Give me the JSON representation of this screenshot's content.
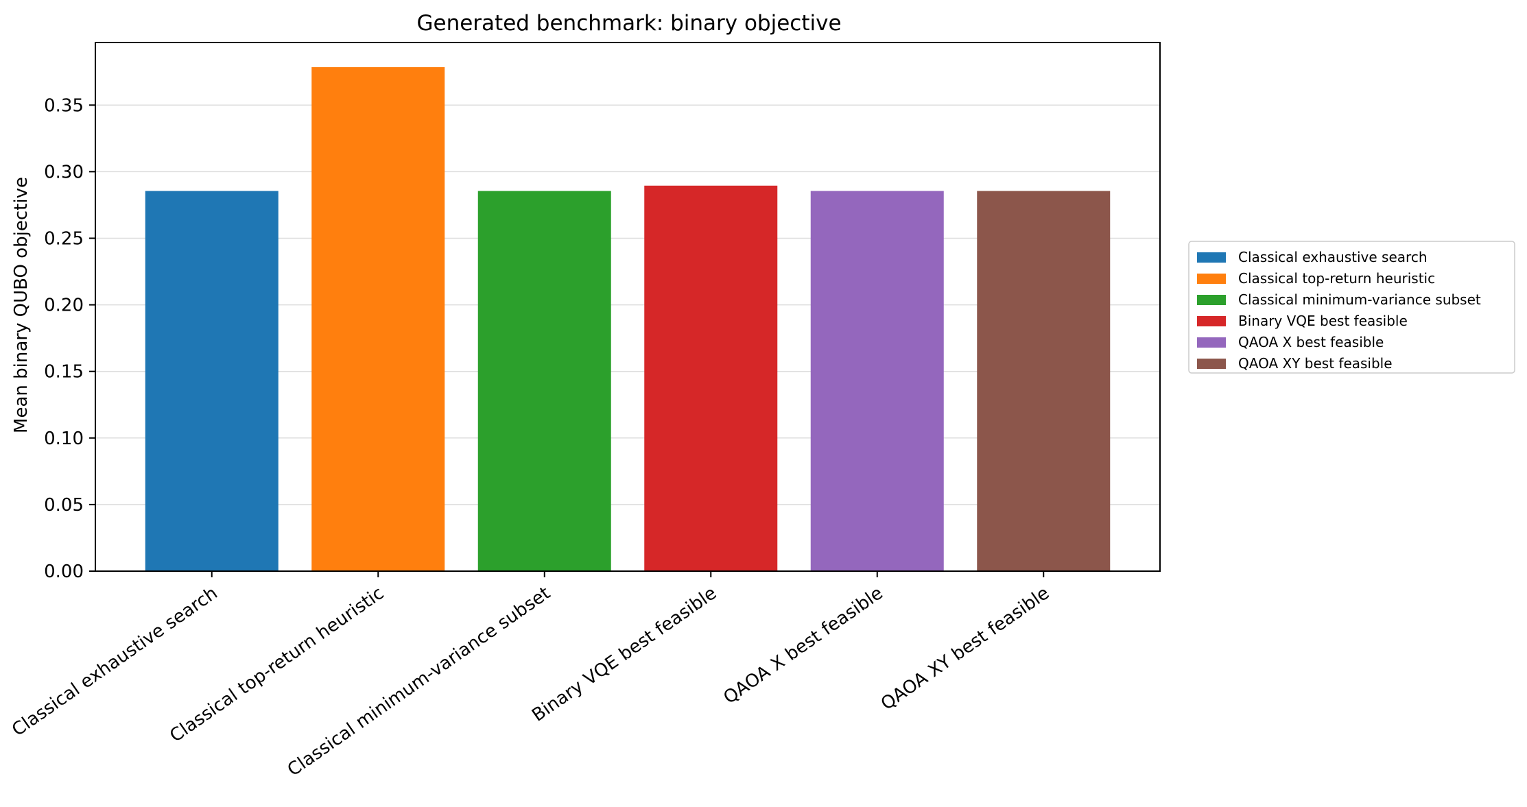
{
  "chart_data": {
    "type": "bar",
    "title": "Generated benchmark: binary objective",
    "xlabel": "",
    "ylabel": "Mean binary QUBO objective",
    "ylim": [
      0,
      0.397
    ],
    "yticks": [
      "0.00",
      "0.05",
      "0.10",
      "0.15",
      "0.20",
      "0.25",
      "0.30",
      "0.35"
    ],
    "grid": "y",
    "legend_position": "right",
    "categories": [
      "Classical exhaustive search",
      "Classical top-return heuristic",
      "Classical minimum-variance subset",
      "Binary VQE best feasible",
      "QAOA X best feasible",
      "QAOA XY best feasible"
    ],
    "values": [
      0.2855,
      0.3785,
      0.2855,
      0.2895,
      0.2855,
      0.2855
    ],
    "colors": [
      "#1f77b4",
      "#ff7f0e",
      "#2ca02c",
      "#d62728",
      "#9467bd",
      "#8c564b"
    ],
    "legend": [
      "Classical exhaustive search",
      "Classical top-return heuristic",
      "Classical minimum-variance subset",
      "Binary VQE best feasible",
      "QAOA X best feasible",
      "QAOA XY best feasible"
    ]
  }
}
